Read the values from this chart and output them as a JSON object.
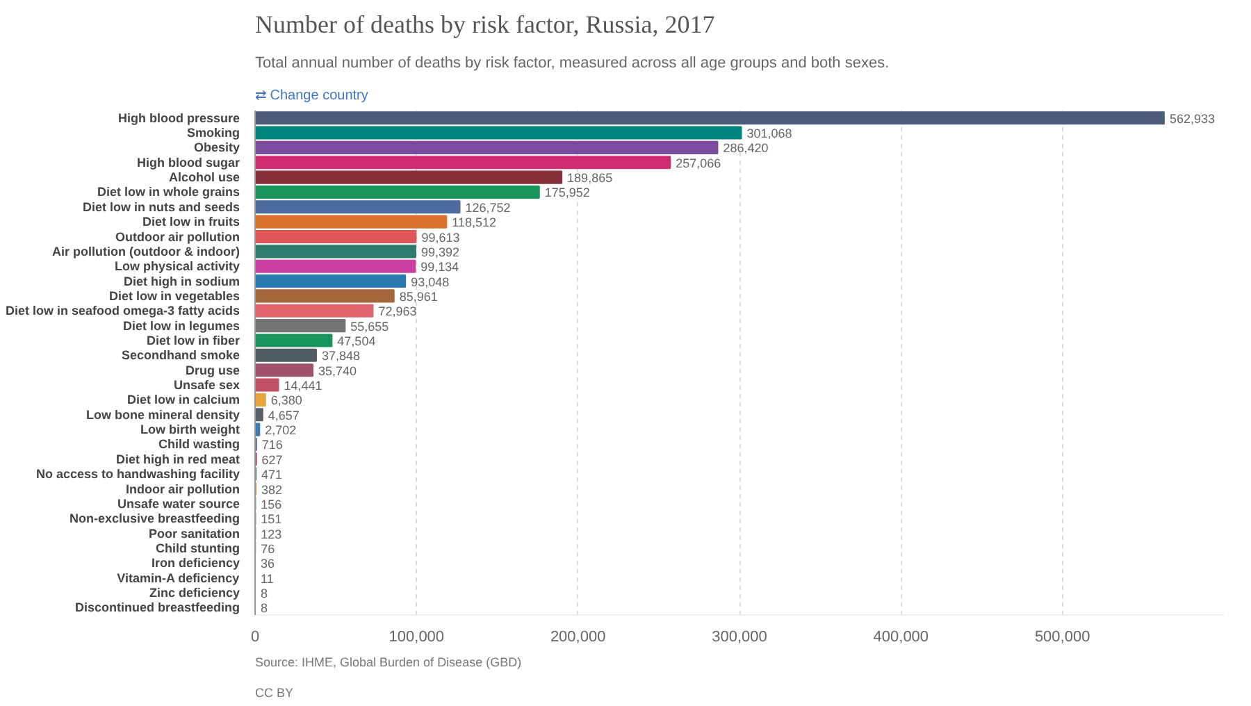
{
  "chart_data": {
    "type": "bar",
    "orientation": "horizontal",
    "title": "Number of deaths by risk factor, Russia, 2017",
    "subtitle": "Total annual number of deaths by risk factor, measured across all age groups and both sexes.",
    "categories": [
      "High blood pressure",
      "Smoking",
      "Obesity",
      "High blood sugar",
      "Alcohol use",
      "Diet low in whole grains",
      "Diet low in nuts and seeds",
      "Diet low in fruits",
      "Outdoor air pollution",
      "Air pollution (outdoor & indoor)",
      "Low physical activity",
      "Diet high in sodium",
      "Diet low in vegetables",
      "Diet low in seafood omega-3 fatty acids",
      "Diet low in legumes",
      "Diet low in fiber",
      "Secondhand smoke",
      "Drug use",
      "Unsafe sex",
      "Diet low in calcium",
      "Low bone mineral density",
      "Low birth weight",
      "Child wasting",
      "Diet high in red meat",
      "No access to handwashing facility",
      "Indoor air pollution",
      "Unsafe water source",
      "Non-exclusive breastfeeding",
      "Poor sanitation",
      "Child stunting",
      "Iron deficiency",
      "Vitamin-A deficiency",
      "Zinc deficiency",
      "Discontinued breastfeeding"
    ],
    "values": [
      562933,
      301068,
      286420,
      257066,
      189865,
      175952,
      126752,
      118512,
      99613,
      99392,
      99134,
      93048,
      85961,
      72963,
      55655,
      47504,
      37848,
      35740,
      14441,
      6380,
      4657,
      2702,
      716,
      627,
      471,
      382,
      156,
      151,
      123,
      76,
      36,
      11,
      8,
      8
    ],
    "colors": [
      "#4c5c78",
      "#00847e",
      "#7a4a9e",
      "#d12b73",
      "#883039",
      "#18955a",
      "#4c6a9c",
      "#d97430",
      "#e15759",
      "#2f7c6e",
      "#c93ea0",
      "#2a7ab0",
      "#a2673b",
      "#e26670",
      "#737373",
      "#18955a",
      "#4f5b61",
      "#a0506d",
      "#c15065",
      "#e8a33b",
      "#57606a",
      "#3c7cb0",
      "#4c5c78",
      "#883039",
      "#2f7c6e",
      "#d97430",
      "#2a7ab0",
      "#7a4a9e",
      "#737373",
      "#18955a",
      "#c15065",
      "#e8a33b",
      "#4c6a9c",
      "#a2673b"
    ],
    "xlim": [
      0,
      600000
    ],
    "xticks": [
      0,
      {
        "value": 100000,
        "label": "100,000"
      },
      {
        "value": 200000,
        "label": "200,000"
      },
      {
        "value": 300000,
        "label": "300,000"
      },
      {
        "value": 400000,
        "label": "400,000"
      },
      {
        "value": 500000,
        "label": "500,000"
      }
    ],
    "grid": "x",
    "value_labels": [
      "562,933",
      "301,068",
      "286,420",
      "257,066",
      "189,865",
      "175,952",
      "126,752",
      "118,512",
      "99,613",
      "99,392",
      "99,134",
      "93,048",
      "85,961",
      "72,963",
      "55,655",
      "47,504",
      "37,848",
      "35,740",
      "14,441",
      "6,380",
      "4,657",
      "2,702",
      "716",
      "627",
      "471",
      "382",
      "156",
      "151",
      "123",
      "76",
      "36",
      "11",
      "8",
      "8"
    ],
    "annotations": [
      "⇄ Change country",
      "Source: IHME, Global Burden of Disease (GBD)",
      "CC BY"
    ]
  }
}
